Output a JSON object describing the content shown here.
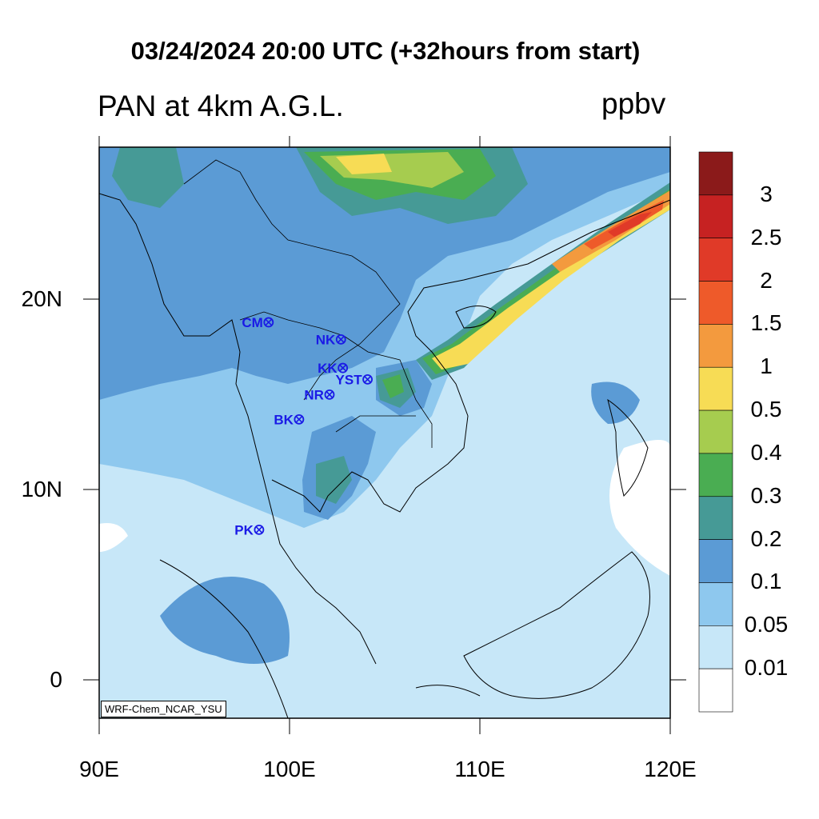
{
  "title": "03/24/2024 20:00 UTC (+32hours from start)",
  "subtitle": "PAN at 4km A.G.L.",
  "units": "ppbv",
  "credit": "WRF-Chem_NCAR_YSU",
  "lat_labels": [
    "20N",
    "10N",
    "0"
  ],
  "lon_labels": [
    "90E",
    "100E",
    "110E",
    "120E"
  ],
  "colorbar": {
    "labels": [
      "3",
      "2.5",
      "2",
      "1.5",
      "1",
      "0.5",
      "0.4",
      "0.3",
      "0.2",
      "0.1",
      "0.05",
      "0.01"
    ],
    "colors_top_to_bottom": [
      "#8b1a1a",
      "#c62222",
      "#e03a28",
      "#ee5a2a",
      "#f39a3e",
      "#f7dc55",
      "#a6cc4f",
      "#4aad52",
      "#469a96",
      "#5b9bd5",
      "#8ec8ee",
      "#c7e7f8",
      "#ffffff"
    ]
  },
  "stations": [
    {
      "code": "CM",
      "lon": 98.9,
      "lat": 18.8
    },
    {
      "code": "NK",
      "lon": 102.7,
      "lat": 17.9
    },
    {
      "code": "KK",
      "lon": 102.8,
      "lat": 16.4
    },
    {
      "code": "YST",
      "lon": 104.1,
      "lat": 15.8
    },
    {
      "code": "NR",
      "lon": 102.1,
      "lat": 15.0
    },
    {
      "code": "BK",
      "lon": 100.5,
      "lat": 13.7
    },
    {
      "code": "PK",
      "lon": 98.4,
      "lat": 7.9
    }
  ],
  "map": {
    "lon_range": [
      90,
      120
    ],
    "lat_range": [
      -2,
      28
    ]
  }
}
